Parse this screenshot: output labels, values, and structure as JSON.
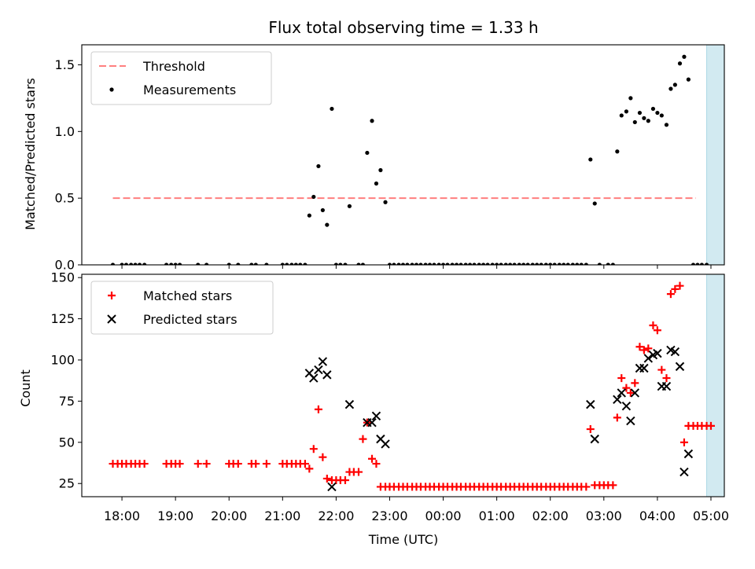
{
  "chart_data": [
    {
      "type": "scatter",
      "title": "Flux total observing time = 1.33 h",
      "xlabel": "",
      "ylabel": "Matched/Predicted stars",
      "xlim": [
        17.25,
        29.25
      ],
      "ylim": [
        0,
        1.65
      ],
      "yticks": [
        0.0,
        0.5,
        1.0,
        1.5
      ],
      "ytick_labels": [
        "0.0",
        "0.5",
        "1.0",
        "1.5"
      ],
      "highlight_span": [
        28.92,
        30.25
      ],
      "highlight_color": "#add8e6",
      "threshold": {
        "label": "Threshold",
        "value": 0.5,
        "x_range": [
          17.83,
          28.72
        ],
        "color": "#ff7f7f"
      },
      "legend": [
        "Threshold",
        "Measurements"
      ],
      "legend_position": "upper left",
      "series": [
        {
          "name": "Measurements",
          "color": "#000000",
          "points": [
            [
              17.83,
              0
            ],
            [
              18.0,
              0
            ],
            [
              18.08,
              0
            ],
            [
              18.17,
              0
            ],
            [
              18.25,
              0
            ],
            [
              18.33,
              0
            ],
            [
              18.42,
              0
            ],
            [
              18.83,
              0
            ],
            [
              18.92,
              0
            ],
            [
              19.0,
              0
            ],
            [
              19.08,
              0
            ],
            [
              19.42,
              0
            ],
            [
              19.58,
              0
            ],
            [
              20.0,
              0
            ],
            [
              20.17,
              0
            ],
            [
              20.42,
              0
            ],
            [
              20.5,
              0
            ],
            [
              20.7,
              0
            ],
            [
              21.0,
              0
            ],
            [
              21.08,
              0
            ],
            [
              21.17,
              0
            ],
            [
              21.25,
              0
            ],
            [
              21.33,
              0
            ],
            [
              21.42,
              0
            ],
            [
              21.5,
              0.37
            ],
            [
              21.58,
              0.51
            ],
            [
              21.67,
              0.74
            ],
            [
              21.75,
              0.41
            ],
            [
              21.83,
              0.3
            ],
            [
              21.92,
              1.17
            ],
            [
              22.0,
              0
            ],
            [
              22.08,
              0
            ],
            [
              22.17,
              0
            ],
            [
              22.25,
              0.44
            ],
            [
              22.42,
              0
            ],
            [
              22.5,
              0
            ],
            [
              22.58,
              0.84
            ],
            [
              22.67,
              1.08
            ],
            [
              22.75,
              0.61
            ],
            [
              22.83,
              0.71
            ],
            [
              22.92,
              0.47
            ],
            [
              23.0,
              0
            ],
            [
              23.08,
              0
            ],
            [
              23.17,
              0
            ],
            [
              23.25,
              0
            ],
            [
              23.33,
              0
            ],
            [
              23.42,
              0
            ],
            [
              23.5,
              0
            ],
            [
              23.58,
              0
            ],
            [
              23.67,
              0
            ],
            [
              23.75,
              0
            ],
            [
              23.83,
              0
            ],
            [
              23.92,
              0
            ],
            [
              24.0,
              0
            ],
            [
              24.08,
              0
            ],
            [
              24.17,
              0
            ],
            [
              24.25,
              0
            ],
            [
              24.33,
              0
            ],
            [
              24.42,
              0
            ],
            [
              24.5,
              0
            ],
            [
              24.58,
              0
            ],
            [
              24.67,
              0
            ],
            [
              24.75,
              0
            ],
            [
              24.83,
              0
            ],
            [
              24.92,
              0
            ],
            [
              25.0,
              0
            ],
            [
              25.08,
              0
            ],
            [
              25.17,
              0
            ],
            [
              25.25,
              0
            ],
            [
              25.33,
              0
            ],
            [
              25.42,
              0
            ],
            [
              25.5,
              0
            ],
            [
              25.58,
              0
            ],
            [
              25.67,
              0
            ],
            [
              25.75,
              0
            ],
            [
              25.83,
              0
            ],
            [
              25.92,
              0
            ],
            [
              26.0,
              0
            ],
            [
              26.08,
              0
            ],
            [
              26.17,
              0
            ],
            [
              26.25,
              0
            ],
            [
              26.33,
              0
            ],
            [
              26.42,
              0
            ],
            [
              26.5,
              0
            ],
            [
              26.58,
              0
            ],
            [
              26.67,
              0
            ],
            [
              26.75,
              0.79
            ],
            [
              26.83,
              0.46
            ],
            [
              26.92,
              0
            ],
            [
              27.08,
              0
            ],
            [
              27.17,
              0
            ],
            [
              27.25,
              0.85
            ],
            [
              27.33,
              1.12
            ],
            [
              27.42,
              1.15
            ],
            [
              27.5,
              1.25
            ],
            [
              27.58,
              1.07
            ],
            [
              27.67,
              1.14
            ],
            [
              27.75,
              1.1
            ],
            [
              27.83,
              1.08
            ],
            [
              27.92,
              1.17
            ],
            [
              28.0,
              1.14
            ],
            [
              28.08,
              1.12
            ],
            [
              28.17,
              1.05
            ],
            [
              28.25,
              1.32
            ],
            [
              28.33,
              1.35
            ],
            [
              28.42,
              1.51
            ],
            [
              28.5,
              1.56
            ],
            [
              28.58,
              1.39
            ],
            [
              28.67,
              0
            ],
            [
              28.75,
              0
            ],
            [
              28.83,
              0
            ],
            [
              28.92,
              0
            ]
          ]
        }
      ]
    },
    {
      "type": "scatter",
      "title": "",
      "xlabel": "Time (UTC)",
      "ylabel": "Count",
      "xlim": [
        17.25,
        29.25
      ],
      "ylim": [
        17,
        152
      ],
      "yticks": [
        25,
        50,
        75,
        100,
        125,
        150
      ],
      "ytick_labels": [
        "25",
        "50",
        "75",
        "100",
        "125",
        "150"
      ],
      "xticks": [
        18,
        19,
        20,
        21,
        22,
        23,
        24,
        25,
        26,
        27,
        28,
        29
      ],
      "xtick_labels": [
        "18:00",
        "19:00",
        "20:00",
        "21:00",
        "22:00",
        "23:00",
        "00:00",
        "01:00",
        "02:00",
        "03:00",
        "04:00",
        "05:00"
      ],
      "highlight_span": [
        28.92,
        30.25
      ],
      "highlight_color": "#add8e6",
      "legend": [
        "Matched stars",
        "Predicted stars"
      ],
      "legend_position": "upper left",
      "series": [
        {
          "name": "Matched stars",
          "marker": "+",
          "color": "#ff0000",
          "points": [
            [
              17.83,
              37
            ],
            [
              17.92,
              37
            ],
            [
              18.0,
              37
            ],
            [
              18.08,
              37
            ],
            [
              18.17,
              37
            ],
            [
              18.25,
              37
            ],
            [
              18.33,
              37
            ],
            [
              18.42,
              37
            ],
            [
              18.83,
              37
            ],
            [
              18.92,
              37
            ],
            [
              19.0,
              37
            ],
            [
              19.08,
              37
            ],
            [
              19.42,
              37
            ],
            [
              19.58,
              37
            ],
            [
              20.0,
              37
            ],
            [
              20.08,
              37
            ],
            [
              20.17,
              37
            ],
            [
              20.42,
              37
            ],
            [
              20.5,
              37
            ],
            [
              20.7,
              37
            ],
            [
              21.0,
              37
            ],
            [
              21.08,
              37
            ],
            [
              21.17,
              37
            ],
            [
              21.25,
              37
            ],
            [
              21.33,
              37
            ],
            [
              21.42,
              37
            ],
            [
              21.5,
              34
            ],
            [
              21.58,
              46
            ],
            [
              21.67,
              70
            ],
            [
              21.75,
              41
            ],
            [
              21.83,
              28
            ],
            [
              21.92,
              27
            ],
            [
              22.0,
              27
            ],
            [
              22.08,
              27
            ],
            [
              22.17,
              27
            ],
            [
              22.25,
              32
            ],
            [
              22.33,
              32
            ],
            [
              22.42,
              32
            ],
            [
              22.5,
              52
            ],
            [
              22.58,
              62
            ],
            [
              22.67,
              40
            ],
            [
              22.75,
              37
            ],
            [
              22.83,
              23
            ],
            [
              22.92,
              23
            ],
            [
              23.0,
              23
            ],
            [
              23.08,
              23
            ],
            [
              23.17,
              23
            ],
            [
              23.25,
              23
            ],
            [
              23.33,
              23
            ],
            [
              23.42,
              23
            ],
            [
              23.5,
              23
            ],
            [
              23.58,
              23
            ],
            [
              23.67,
              23
            ],
            [
              23.75,
              23
            ],
            [
              23.83,
              23
            ],
            [
              23.92,
              23
            ],
            [
              24.0,
              23
            ],
            [
              24.08,
              23
            ],
            [
              24.17,
              23
            ],
            [
              24.25,
              23
            ],
            [
              24.33,
              23
            ],
            [
              24.42,
              23
            ],
            [
              24.5,
              23
            ],
            [
              24.58,
              23
            ],
            [
              24.67,
              23
            ],
            [
              24.75,
              23
            ],
            [
              24.83,
              23
            ],
            [
              24.92,
              23
            ],
            [
              25.0,
              23
            ],
            [
              25.08,
              23
            ],
            [
              25.17,
              23
            ],
            [
              25.25,
              23
            ],
            [
              25.33,
              23
            ],
            [
              25.42,
              23
            ],
            [
              25.5,
              23
            ],
            [
              25.58,
              23
            ],
            [
              25.67,
              23
            ],
            [
              25.75,
              23
            ],
            [
              25.83,
              23
            ],
            [
              25.92,
              23
            ],
            [
              26.0,
              23
            ],
            [
              26.08,
              23
            ],
            [
              26.17,
              23
            ],
            [
              26.25,
              23
            ],
            [
              26.33,
              23
            ],
            [
              26.42,
              23
            ],
            [
              26.5,
              23
            ],
            [
              26.58,
              23
            ],
            [
              26.67,
              23
            ],
            [
              26.75,
              58
            ],
            [
              26.83,
              24
            ],
            [
              26.92,
              24
            ],
            [
              27.0,
              24
            ],
            [
              27.08,
              24
            ],
            [
              27.17,
              24
            ],
            [
              27.25,
              65
            ],
            [
              27.33,
              89
            ],
            [
              27.42,
              83
            ],
            [
              27.5,
              80
            ],
            [
              27.58,
              86
            ],
            [
              27.67,
              108
            ],
            [
              27.75,
              106
            ],
            [
              27.83,
              107
            ],
            [
              27.92,
              121
            ],
            [
              28.0,
              118
            ],
            [
              28.08,
              94
            ],
            [
              28.17,
              89
            ],
            [
              28.25,
              140
            ],
            [
              28.33,
              143
            ],
            [
              28.42,
              145
            ],
            [
              28.5,
              50
            ],
            [
              28.58,
              60
            ],
            [
              28.67,
              60
            ],
            [
              28.75,
              60
            ],
            [
              28.83,
              60
            ],
            [
              28.92,
              60
            ],
            [
              29.0,
              60
            ]
          ]
        },
        {
          "name": "Predicted stars",
          "marker": "x",
          "color": "#000000",
          "points": [
            [
              21.5,
              92
            ],
            [
              21.58,
              89
            ],
            [
              21.67,
              94
            ],
            [
              21.75,
              99
            ],
            [
              21.83,
              91
            ],
            [
              21.92,
              23
            ],
            [
              22.25,
              73
            ],
            [
              22.58,
              62
            ],
            [
              22.67,
              62
            ],
            [
              22.75,
              66
            ],
            [
              22.83,
              52
            ],
            [
              22.92,
              49
            ],
            [
              26.75,
              73
            ],
            [
              26.83,
              52
            ],
            [
              27.25,
              76
            ],
            [
              27.33,
              80
            ],
            [
              27.42,
              72
            ],
            [
              27.5,
              63
            ],
            [
              27.58,
              80
            ],
            [
              27.67,
              95
            ],
            [
              27.75,
              95
            ],
            [
              27.83,
              101
            ],
            [
              27.92,
              103
            ],
            [
              28.0,
              104
            ],
            [
              28.08,
              84
            ],
            [
              28.17,
              84
            ],
            [
              28.25,
              106
            ],
            [
              28.33,
              105
            ],
            [
              28.42,
              96
            ],
            [
              28.5,
              32
            ],
            [
              28.58,
              43
            ]
          ]
        }
      ]
    }
  ]
}
